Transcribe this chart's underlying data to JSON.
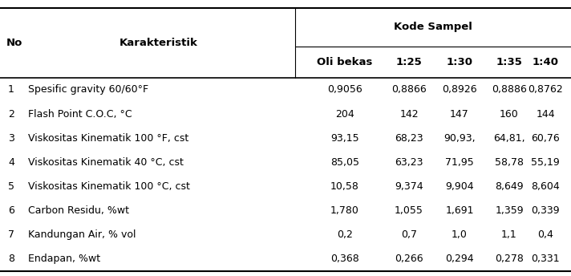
{
  "header_top": "Kode Sampel",
  "col_no": "No",
  "col_karakteristik": "Karakteristik",
  "sub_headers": [
    "Oli bekas",
    "1:25",
    "1:30",
    "1:35",
    "1:40"
  ],
  "rows": [
    {
      "no": "1",
      "karakteristik": "Spesific gravity 60/60°F",
      "values": [
        "0,9056",
        "0,8866",
        "0,8926",
        "0,8886",
        "0,8762"
      ]
    },
    {
      "no": "2",
      "karakteristik": "Flash Point C.O.C, °C",
      "values": [
        "204",
        "142",
        "147",
        "160",
        "144"
      ]
    },
    {
      "no": "3",
      "karakteristik": "Viskositas Kinematik 100 °F, cst",
      "values": [
        "93,15",
        "68,23",
        "90,93,",
        "64,81,",
        "60,76"
      ]
    },
    {
      "no": "4",
      "karakteristik": "Viskositas Kinematik 40 °C, cst",
      "values": [
        "85,05",
        "63,23",
        "71,95",
        "58,78",
        "55,19"
      ]
    },
    {
      "no": "5",
      "karakteristik": "Viskositas Kinematik 100 °C, cst",
      "values": [
        "10,58",
        "9,374",
        "9,904",
        "8,649",
        "8,604"
      ]
    },
    {
      "no": "6",
      "karakteristik": "Carbon Residu, %wt",
      "values": [
        "1,780",
        "1,055",
        "1,691",
        "1,359",
        "0,339"
      ]
    },
    {
      "no": "7",
      "karakteristik": "Kandungan Air, % vol",
      "values": [
        "0,2",
        "0,7",
        "1,0",
        "1,1",
        "0,4"
      ]
    },
    {
      "no": "8",
      "karakteristik": "Endapan, %wt",
      "values": [
        "0,368",
        "0,266",
        "0,294",
        "0,278",
        "0,331"
      ]
    }
  ],
  "bg_color": "#ffffff",
  "text_color": "#000000",
  "font_size": 9.0,
  "header_font_size": 9.5
}
